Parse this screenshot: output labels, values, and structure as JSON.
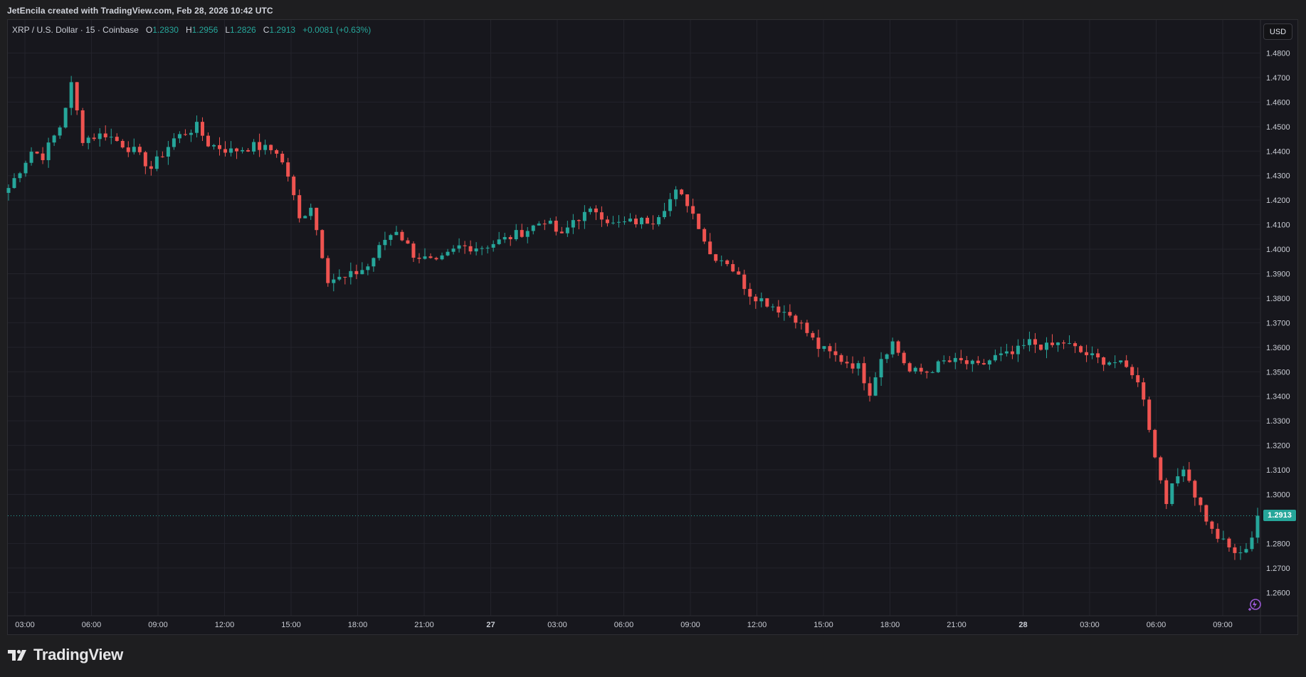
{
  "header": {
    "credit": "JetEncila created with TradingView.com, Feb 28, 2026 10:42 UTC"
  },
  "legend": {
    "symbol": "XRP / U.S. Dollar · 15 · Coinbase",
    "o_label": "O",
    "o_value": "1.2830",
    "h_label": "H",
    "h_value": "1.2956",
    "l_label": "L",
    "l_value": "1.2826",
    "c_label": "C",
    "c_value": "1.2913",
    "change": "+0.0081 (+0.63%)"
  },
  "currency_badge": "USD",
  "last_price_label": "1.2913",
  "brand": {
    "name": "TradingView",
    "logo": "tradingview-logo-icon"
  },
  "colors": {
    "up": "#26a69a",
    "down": "#ef5350",
    "background": "#17171d",
    "grid": "#23232b",
    "text": "#c9ccd4"
  },
  "chart_data": {
    "type": "candlestick",
    "timeframe": "15",
    "x_tick_labels": [
      "03:00",
      "06:00",
      "09:00",
      "12:00",
      "15:00",
      "18:00",
      "21:00",
      "27",
      "03:00",
      "06:00",
      "09:00",
      "12:00",
      "15:00",
      "18:00",
      "21:00",
      "28",
      "03:00",
      "06:00",
      "09:00"
    ],
    "y_tick_labels": [
      "1.4800",
      "1.4700",
      "1.4600",
      "1.4500",
      "1.4400",
      "1.4300",
      "1.4200",
      "1.4100",
      "1.4000",
      "1.3900",
      "1.3800",
      "1.3700",
      "1.3600",
      "1.3500",
      "1.3400",
      "1.3300",
      "1.3200",
      "1.3100",
      "1.3000",
      "1.2800",
      "1.2700",
      "1.2600"
    ],
    "ylim": [
      1.2505,
      1.4935
    ],
    "last_close": 1.2913,
    "close_path": [
      [
        0,
        1.425
      ],
      [
        4,
        1.44
      ],
      [
        6,
        1.438
      ],
      [
        9,
        1.45
      ],
      [
        11,
        1.467
      ],
      [
        13,
        1.445
      ],
      [
        17,
        1.447
      ],
      [
        22,
        1.44
      ],
      [
        25,
        1.433
      ],
      [
        29,
        1.445
      ],
      [
        33,
        1.45
      ],
      [
        35,
        1.443
      ],
      [
        39,
        1.44
      ],
      [
        43,
        1.442
      ],
      [
        47,
        1.44
      ],
      [
        49,
        1.43
      ],
      [
        51,
        1.412
      ],
      [
        53,
        1.418
      ],
      [
        56,
        1.388
      ],
      [
        59,
        1.388
      ],
      [
        63,
        1.393
      ],
      [
        66,
        1.404
      ],
      [
        68,
        1.408
      ],
      [
        71,
        1.398
      ],
      [
        75,
        1.394
      ],
      [
        79,
        1.401
      ],
      [
        83,
        1.401
      ],
      [
        87,
        1.404
      ],
      [
        91,
        1.408
      ],
      [
        94,
        1.412
      ],
      [
        97,
        1.405
      ],
      [
        99,
        1.412
      ],
      [
        103,
        1.416
      ],
      [
        106,
        1.41
      ],
      [
        109,
        1.411
      ],
      [
        113,
        1.412
      ],
      [
        117,
        1.423
      ],
      [
        119,
        1.419
      ],
      [
        121,
        1.41
      ],
      [
        123,
        1.398
      ],
      [
        126,
        1.395
      ],
      [
        130,
        1.382
      ],
      [
        134,
        1.377
      ],
      [
        138,
        1.372
      ],
      [
        142,
        1.36
      ],
      [
        146,
        1.355
      ],
      [
        149,
        1.352
      ],
      [
        151,
        1.342
      ],
      [
        153,
        1.356
      ],
      [
        155,
        1.362
      ],
      [
        158,
        1.35
      ],
      [
        161,
        1.35
      ],
      [
        164,
        1.354
      ],
      [
        167,
        1.354
      ],
      [
        170,
        1.352
      ],
      [
        173,
        1.356
      ],
      [
        176,
        1.357
      ],
      [
        179,
        1.362
      ],
      [
        182,
        1.36
      ],
      [
        185,
        1.362
      ],
      [
        188,
        1.358
      ],
      [
        191,
        1.355
      ],
      [
        194,
        1.354
      ],
      [
        197,
        1.35
      ],
      [
        199,
        1.34
      ],
      [
        201,
        1.315
      ],
      [
        203,
        1.298
      ],
      [
        206,
        1.312
      ],
      [
        208,
        1.3
      ],
      [
        211,
        1.285
      ],
      [
        214,
        1.278
      ],
      [
        216,
        1.275
      ],
      [
        218,
        1.283
      ],
      [
        219,
        1.2913
      ]
    ],
    "grid": true,
    "legend_position": "top-left"
  }
}
